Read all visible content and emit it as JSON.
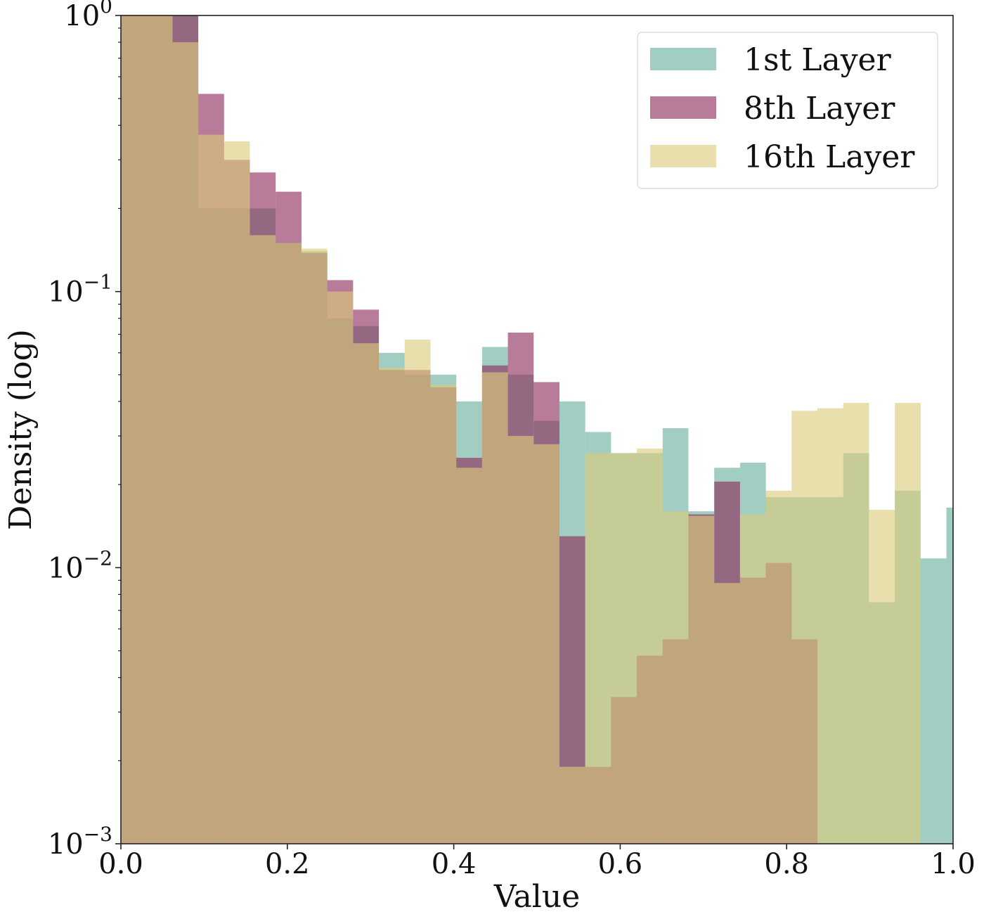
{
  "chart_data": {
    "type": "histogram",
    "xlabel": "Value",
    "ylabel": "Density (log)",
    "xlim": [
      0.0,
      1.0
    ],
    "ylim": [
      0.001,
      1.0
    ],
    "yscale": "log",
    "grid": false,
    "legend_position": "top-right",
    "x_ticks": [
      {
        "value": 0.0,
        "label": "0.0"
      },
      {
        "value": 0.2,
        "label": "0.2"
      },
      {
        "value": 0.4,
        "label": "0.4"
      },
      {
        "value": 0.6,
        "label": "0.6"
      },
      {
        "value": 0.8,
        "label": "0.8"
      },
      {
        "value": 1.0,
        "label": "1.0"
      }
    ],
    "y_ticks": [
      {
        "value": 1.0,
        "base": "10",
        "exp": "0"
      },
      {
        "value": 0.1,
        "base": "10",
        "exp": "−1"
      },
      {
        "value": 0.01,
        "base": "10",
        "exp": "−2"
      },
      {
        "value": 0.001,
        "base": "10",
        "exp": "−3"
      }
    ],
    "series": [
      {
        "name": "1st Layer",
        "color": "#69ae9c",
        "bin_width": 0.031,
        "bins": [
          [
            0.0,
            1.0
          ],
          [
            0.031,
            1.0
          ],
          [
            0.062,
            1.0
          ],
          [
            0.093,
            0.2
          ],
          [
            0.124,
            0.2
          ],
          [
            0.155,
            0.2
          ],
          [
            0.186,
            0.15
          ],
          [
            0.217,
            0.14
          ],
          [
            0.248,
            0.08
          ],
          [
            0.279,
            0.075
          ],
          [
            0.31,
            0.06
          ],
          [
            0.341,
            0.05
          ],
          [
            0.372,
            0.05
          ],
          [
            0.403,
            0.04
          ],
          [
            0.434,
            0.063
          ],
          [
            0.465,
            0.05
          ],
          [
            0.496,
            0.034
          ],
          [
            0.527,
            0.04
          ],
          [
            0.558,
            0.031
          ],
          [
            0.589,
            0.026
          ],
          [
            0.62,
            0.026
          ],
          [
            0.651,
            0.032
          ],
          [
            0.682,
            0.016
          ],
          [
            0.713,
            0.023
          ],
          [
            0.744,
            0.024
          ],
          [
            0.775,
            0.018
          ],
          [
            0.806,
            0.018
          ],
          [
            0.837,
            0.018
          ],
          [
            0.868,
            0.026
          ],
          [
            0.899,
            0.0075
          ],
          [
            0.93,
            0.019
          ],
          [
            0.961,
            0.0108
          ],
          [
            0.992,
            0.0165
          ]
        ]
      },
      {
        "name": "8th Layer",
        "color": "#8d2a5a",
        "bin_width": 0.031,
        "bins": [
          [
            0.0,
            1.0
          ],
          [
            0.031,
            1.0
          ],
          [
            0.062,
            1.0
          ],
          [
            0.093,
            0.52
          ],
          [
            0.124,
            0.3
          ],
          [
            0.155,
            0.27
          ],
          [
            0.186,
            0.23
          ],
          [
            0.217,
            0.138
          ],
          [
            0.248,
            0.11
          ],
          [
            0.279,
            0.086
          ],
          [
            0.31,
            0.052
          ],
          [
            0.341,
            0.052
          ],
          [
            0.372,
            0.045
          ],
          [
            0.403,
            0.025
          ],
          [
            0.434,
            0.054
          ],
          [
            0.465,
            0.071
          ],
          [
            0.496,
            0.047
          ],
          [
            0.527,
            0.013
          ],
          [
            0.558,
            0.0019
          ],
          [
            0.589,
            0.0034
          ],
          [
            0.62,
            0.0048
          ],
          [
            0.651,
            0.0055
          ],
          [
            0.682,
            0.0156
          ],
          [
            0.713,
            0.0205
          ],
          [
            0.744,
            0.0092
          ],
          [
            0.775,
            0.0104
          ],
          [
            0.806,
            0.0055
          ],
          [
            0.837,
            0.001
          ],
          [
            0.868,
            0.001
          ],
          [
            0.899,
            0.001
          ]
        ]
      },
      {
        "name": "16th Layer",
        "color": "#dccb7b",
        "bin_width": 0.031,
        "bins": [
          [
            0.0,
            1.0
          ],
          [
            0.031,
            1.0
          ],
          [
            0.062,
            0.8
          ],
          [
            0.093,
            0.37
          ],
          [
            0.124,
            0.35
          ],
          [
            0.155,
            0.16
          ],
          [
            0.186,
            0.15
          ],
          [
            0.217,
            0.143
          ],
          [
            0.248,
            0.1
          ],
          [
            0.279,
            0.065
          ],
          [
            0.31,
            0.053
          ],
          [
            0.341,
            0.067
          ],
          [
            0.372,
            0.046
          ],
          [
            0.403,
            0.023
          ],
          [
            0.434,
            0.051
          ],
          [
            0.465,
            0.03
          ],
          [
            0.496,
            0.028
          ],
          [
            0.527,
            0.0019
          ],
          [
            0.558,
            0.026
          ],
          [
            0.589,
            0.026
          ],
          [
            0.62,
            0.027
          ],
          [
            0.651,
            0.016
          ],
          [
            0.682,
            0.0154
          ],
          [
            0.713,
            0.0088
          ],
          [
            0.744,
            0.0156
          ],
          [
            0.775,
            0.019
          ],
          [
            0.806,
            0.037
          ],
          [
            0.837,
            0.0378
          ],
          [
            0.868,
            0.0395
          ],
          [
            0.899,
            0.0162
          ],
          [
            0.93,
            0.0395
          ],
          [
            0.961,
            0.001
          ]
        ]
      }
    ]
  }
}
